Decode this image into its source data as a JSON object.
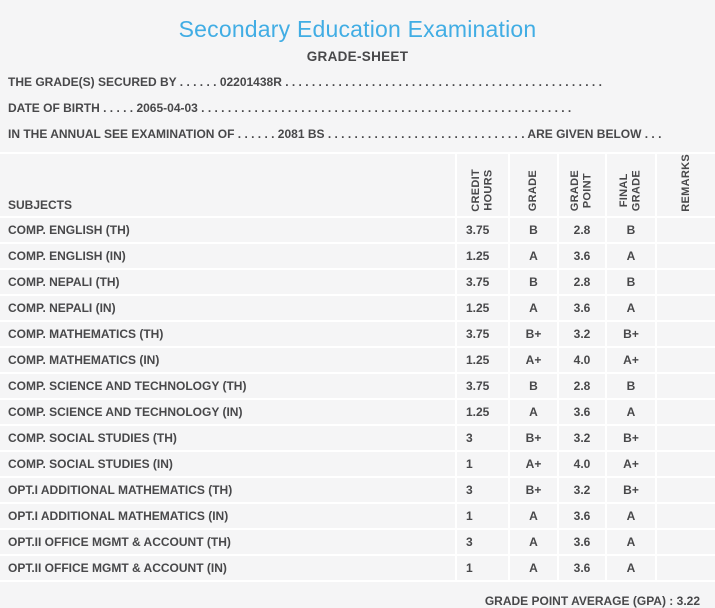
{
  "page": {
    "title": "Secondary Education Examination",
    "subtitle": "GRADE-SHEET"
  },
  "info_lines": [
    {
      "prefix": "THE GRADE(S) SECURED BY . . . . . . ",
      "value": "02201438R",
      "suffix": " . . . . . . . . . . . . . . . . . . . . . . . . . . . . . . . . . . . . . . . . . . . . . . . ."
    },
    {
      "prefix": "DATE OF BIRTH . . . . . ",
      "value": "2065-04-03",
      "suffix": " . . . . . . . . . . . . . . . . . . . . . . . . . . . . . . . . . . . . . . . . . . . . . . . . . . . . . . . ."
    },
    {
      "prefix": "IN THE ANNUAL SEE EXAMINATION OF . . . . . . ",
      "value": "2081 BS",
      "suffix": " . . . . . . . . . . . . . . . . . . . . . . . . . . . . . . ARE GIVEN BELOW . . ."
    }
  ],
  "table": {
    "headers": {
      "subjects": "SUBJECTS",
      "credit_hours": "CREDIT\nHOURS",
      "grade": "GRADE",
      "grade_point": "GRADE\nPOINT",
      "final_grade": "FINAL\nGRADE",
      "remarks": "REMARKS"
    },
    "rows": [
      {
        "subject": "COMP. ENGLISH (TH)",
        "credit_hours": "3.75",
        "grade": "B",
        "grade_point": "2.8",
        "final_grade": "B",
        "remarks": ""
      },
      {
        "subject": "COMP. ENGLISH (IN)",
        "credit_hours": "1.25",
        "grade": "A",
        "grade_point": "3.6",
        "final_grade": "A",
        "remarks": ""
      },
      {
        "subject": "COMP. NEPALI (TH)",
        "credit_hours": "3.75",
        "grade": "B",
        "grade_point": "2.8",
        "final_grade": "B",
        "remarks": ""
      },
      {
        "subject": "COMP. NEPALI (IN)",
        "credit_hours": "1.25",
        "grade": "A",
        "grade_point": "3.6",
        "final_grade": "A",
        "remarks": ""
      },
      {
        "subject": "COMP. MATHEMATICS (TH)",
        "credit_hours": "3.75",
        "grade": "B+",
        "grade_point": "3.2",
        "final_grade": "B+",
        "remarks": ""
      },
      {
        "subject": "COMP. MATHEMATICS (IN)",
        "credit_hours": "1.25",
        "grade": "A+",
        "grade_point": "4.0",
        "final_grade": "A+",
        "remarks": ""
      },
      {
        "subject": "COMP. SCIENCE AND TECHNOLOGY (TH)",
        "credit_hours": "3.75",
        "grade": "B",
        "grade_point": "2.8",
        "final_grade": "B",
        "remarks": ""
      },
      {
        "subject": "COMP. SCIENCE AND TECHNOLOGY (IN)",
        "credit_hours": "1.25",
        "grade": "A",
        "grade_point": "3.6",
        "final_grade": "A",
        "remarks": ""
      },
      {
        "subject": "COMP. SOCIAL STUDIES (TH)",
        "credit_hours": "3",
        "grade": "B+",
        "grade_point": "3.2",
        "final_grade": "B+",
        "remarks": ""
      },
      {
        "subject": "COMP. SOCIAL STUDIES (IN)",
        "credit_hours": "1",
        "grade": "A+",
        "grade_point": "4.0",
        "final_grade": "A+",
        "remarks": ""
      },
      {
        "subject": "OPT.I ADDITIONAL MATHEMATICS (TH)",
        "credit_hours": "3",
        "grade": "B+",
        "grade_point": "3.2",
        "final_grade": "B+",
        "remarks": ""
      },
      {
        "subject": "OPT.I ADDITIONAL MATHEMATICS (IN)",
        "credit_hours": "1",
        "grade": "A",
        "grade_point": "3.6",
        "final_grade": "A",
        "remarks": ""
      },
      {
        "subject": "OPT.II OFFICE MGMT & ACCOUNT (TH)",
        "credit_hours": "3",
        "grade": "A",
        "grade_point": "3.6",
        "final_grade": "A",
        "remarks": ""
      },
      {
        "subject": "OPT.II OFFICE MGMT & ACCOUNT (IN)",
        "credit_hours": "1",
        "grade": "A",
        "grade_point": "3.6",
        "final_grade": "A",
        "remarks": ""
      }
    ]
  },
  "footer": {
    "gpa_label": "GRADE POINT AVERAGE (GPA) : ",
    "gpa_value": "3.22"
  },
  "colors": {
    "title_blue": "#41ade4",
    "text_gray": "#48484a",
    "background": "#f5f5f6",
    "cell_border": "#ffffff"
  }
}
